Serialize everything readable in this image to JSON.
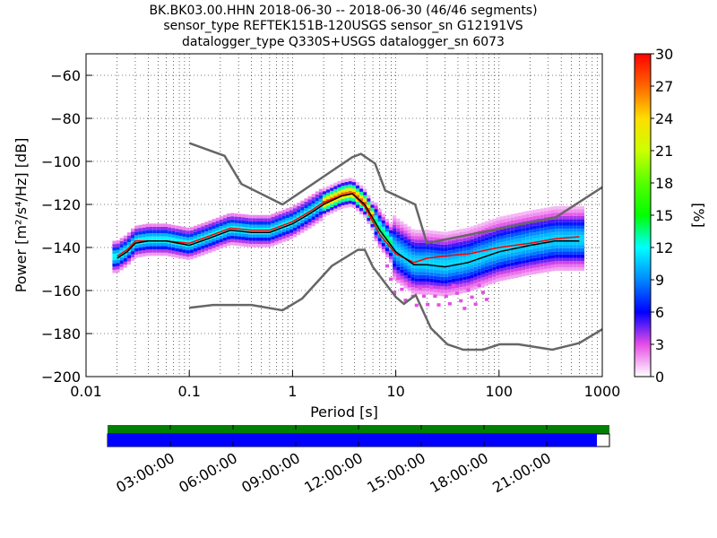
{
  "title_lines": [
    "BK.BK03.00.HHN   2018-06-30 -- 2018-06-30  (46/46 segments)",
    "sensor_type REFTEK151B-120USGS sensor_sn G12191VS",
    "datalogger_type Q330S+USGS datalogger_sn 6073"
  ],
  "chart_data": [
    {
      "type": "heatmap",
      "title": "BK.BK03.00.HHN   2018-06-30 -- 2018-06-30  (46/46 segments)",
      "xlabel": "Period [s]",
      "ylabel": "Power [m²/s⁴/Hz] [dB]",
      "x_scale": "log",
      "xlim": [
        0.01,
        1000
      ],
      "ylim": [
        -200,
        -50
      ],
      "x_ticks": [
        "0.01",
        "0.1",
        "1",
        "10",
        "100",
        "1000"
      ],
      "y_ticks": [
        "−60",
        "−80",
        "−100",
        "−120",
        "−140",
        "−160",
        "−180",
        "−200"
      ],
      "grid": "dotted",
      "colorbar": {
        "label": "[%]",
        "range": [
          0,
          30
        ],
        "ticks": [
          "30",
          "27",
          "24",
          "21",
          "18",
          "15",
          "12",
          "9",
          "6",
          "3",
          "0"
        ]
      },
      "noise_model_high": {
        "x": [
          0.1,
          0.22,
          0.32,
          0.8,
          3.8,
          4.6,
          6.3,
          7.9,
          15.4,
          20,
          354,
          1000
        ],
        "y": [
          -91.5,
          -97.4,
          -110.5,
          -120,
          -98,
          -96.5,
          -101,
          -113.5,
          -120,
          -138,
          -126,
          -112
        ]
      },
      "noise_model_low": {
        "x": [
          0.1,
          0.17,
          0.4,
          0.8,
          1.24,
          2.4,
          4.3,
          5,
          6,
          10,
          12,
          15.6,
          21.9,
          31.6,
          45,
          70,
          101,
          154,
          328,
          600,
          1000
        ],
        "y": [
          -168,
          -166.7,
          -166.7,
          -169.2,
          -163.7,
          -148.6,
          -141.1,
          -141.1,
          -149,
          -163,
          -166.2,
          -162.1,
          -177.5,
          -185,
          -187.5,
          -187.5,
          -185,
          -185,
          -187.5,
          -184.4,
          -178
        ]
      },
      "mode_line": {
        "x": [
          0.02,
          0.025,
          0.03,
          0.04,
          0.06,
          0.1,
          0.15,
          0.25,
          0.4,
          0.6,
          1,
          1.5,
          2,
          3,
          3.8,
          5,
          7,
          10,
          15,
          20,
          30,
          50,
          100,
          200,
          350,
          600
        ],
        "y": [
          -145,
          -142,
          -138,
          -137,
          -137,
          -139,
          -136,
          -132,
          -133,
          -133,
          -129,
          -124,
          -120,
          -116,
          -115,
          -120,
          -132,
          -142,
          -148,
          -148,
          -149,
          -147,
          -142,
          -139,
          -137,
          -137
        ]
      },
      "mean_line": {
        "x": [
          0.02,
          0.025,
          0.03,
          0.04,
          0.06,
          0.1,
          0.15,
          0.25,
          0.4,
          0.6,
          1,
          1.5,
          2,
          3,
          3.8,
          5,
          7,
          10,
          15,
          20,
          30,
          50,
          100,
          200,
          350,
          600
        ],
        "y": [
          -144,
          -141,
          -137,
          -137,
          -137,
          -138,
          -135,
          -131,
          -132,
          -132,
          -128,
          -123,
          -119,
          -116,
          -115,
          -121,
          -134,
          -143,
          -147,
          -145,
          -144,
          -143,
          -140,
          -138,
          -136,
          -135
        ]
      }
    },
    {
      "type": "bar",
      "description": "data availability timeline",
      "time_ticks": [
        "03:00:00",
        "06:00:00",
        "09:00:00",
        "12:00:00",
        "15:00:00",
        "18:00:00",
        "21:00:00"
      ],
      "time_range_hours": [
        0,
        24
      ],
      "coverage_hours": [
        0,
        23.4
      ],
      "colors": {
        "segments": "#008000",
        "coverage": "#0000ff",
        "gap": "#ffffff"
      }
    }
  ],
  "colors": {
    "axis": "#000000",
    "noise_model": "#666666",
    "mode_line": "#000000",
    "mean_line": "#ff0000"
  }
}
